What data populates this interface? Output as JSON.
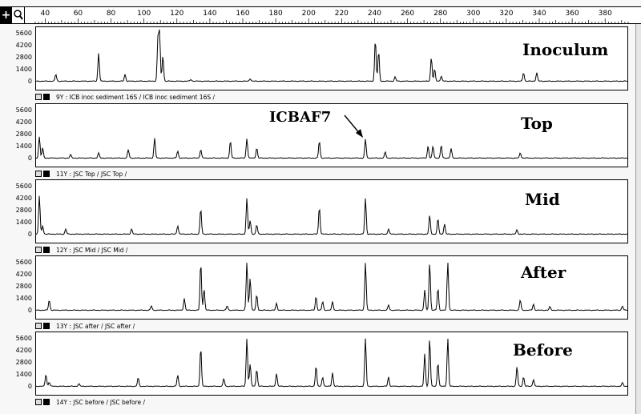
{
  "toolbar": {
    "crosshair_icon": "crosshair-icon",
    "zoom_icon": "magnifier-icon",
    "crosshair_glyph": "+",
    "zoom_glyph": "⚲"
  },
  "ruler": {
    "ticks": [
      "40",
      "60",
      "80",
      "100",
      "120",
      "140",
      "160",
      "180",
      "200",
      "220",
      "240",
      "260",
      "280",
      "300",
      "320",
      "340",
      "360",
      "380"
    ],
    "values": [
      40,
      60,
      80,
      100,
      120,
      140,
      160,
      180,
      200,
      220,
      240,
      260,
      280,
      300,
      320,
      340,
      360,
      380
    ],
    "range": [
      34,
      394
    ]
  },
  "y_ticks": [
    "5600",
    "4200",
    "2800",
    "1400",
    "0"
  ],
  "annotation": {
    "text": "ICBAF7"
  },
  "panels": [
    {
      "id": "inoculum",
      "label": "Inoculum",
      "caption": "9Y : ICB inoc sediment 16S / ICB inoc sediment 16S /",
      "peaks": [
        [
          46,
          800
        ],
        [
          72,
          3300
        ],
        [
          88,
          800
        ],
        [
          108,
          5000
        ],
        [
          109,
          5500
        ],
        [
          111,
          3000
        ],
        [
          128,
          200
        ],
        [
          164,
          300
        ],
        [
          240,
          4900
        ],
        [
          242,
          3500
        ],
        [
          252,
          500
        ],
        [
          274,
          2800
        ],
        [
          276,
          1400
        ],
        [
          280,
          600
        ],
        [
          330,
          1000
        ],
        [
          338,
          1000
        ]
      ]
    },
    {
      "id": "top",
      "label": "Top",
      "caption": "11Y : JSC Top / JSC Top /",
      "peaks": [
        [
          36,
          2500
        ],
        [
          38,
          1200
        ],
        [
          55,
          400
        ],
        [
          72,
          600
        ],
        [
          90,
          1000
        ],
        [
          106,
          2300
        ],
        [
          120,
          800
        ],
        [
          134,
          1000
        ],
        [
          152,
          2000
        ],
        [
          162,
          2300
        ],
        [
          168,
          1200
        ],
        [
          206,
          2000
        ],
        [
          234,
          2200
        ],
        [
          246,
          700
        ],
        [
          272,
          1400
        ],
        [
          275,
          1400
        ],
        [
          280,
          1500
        ],
        [
          286,
          1100
        ],
        [
          328,
          600
        ]
      ]
    },
    {
      "id": "mid",
      "label": "Mid",
      "caption": "12Y : JSC Mid / JSC Mid /",
      "peaks": [
        [
          36,
          4500
        ],
        [
          38,
          1000
        ],
        [
          52,
          600
        ],
        [
          92,
          600
        ],
        [
          120,
          1000
        ],
        [
          134,
          3000
        ],
        [
          162,
          4200
        ],
        [
          164,
          1600
        ],
        [
          168,
          1100
        ],
        [
          206,
          3200
        ],
        [
          234,
          4200
        ],
        [
          248,
          600
        ],
        [
          273,
          2200
        ],
        [
          278,
          1800
        ],
        [
          282,
          1200
        ],
        [
          326,
          500
        ]
      ]
    },
    {
      "id": "after",
      "label": "After",
      "caption": "13Y : JSC after / JSC after /",
      "peaks": [
        [
          42,
          1200
        ],
        [
          104,
          500
        ],
        [
          124,
          1400
        ],
        [
          134,
          5600
        ],
        [
          136,
          2500
        ],
        [
          150,
          500
        ],
        [
          162,
          5600
        ],
        [
          164,
          3800
        ],
        [
          168,
          1800
        ],
        [
          180,
          800
        ],
        [
          204,
          1600
        ],
        [
          208,
          1000
        ],
        [
          214,
          1000
        ],
        [
          234,
          5600
        ],
        [
          248,
          600
        ],
        [
          270,
          2400
        ],
        [
          273,
          5600
        ],
        [
          278,
          2600
        ],
        [
          284,
          5600
        ],
        [
          328,
          1200
        ],
        [
          336,
          700
        ],
        [
          346,
          400
        ],
        [
          390,
          500
        ]
      ]
    },
    {
      "id": "before",
      "label": "Before",
      "caption": "14Y : JSC before / JSC before /",
      "peaks": [
        [
          40,
          1400
        ],
        [
          42,
          500
        ],
        [
          60,
          300
        ],
        [
          96,
          1000
        ],
        [
          120,
          1300
        ],
        [
          134,
          4600
        ],
        [
          148,
          900
        ],
        [
          162,
          5600
        ],
        [
          164,
          2600
        ],
        [
          168,
          2000
        ],
        [
          180,
          1500
        ],
        [
          204,
          2400
        ],
        [
          208,
          1100
        ],
        [
          214,
          1600
        ],
        [
          234,
          5600
        ],
        [
          248,
          1100
        ],
        [
          270,
          3800
        ],
        [
          273,
          5600
        ],
        [
          278,
          2800
        ],
        [
          284,
          5600
        ],
        [
          326,
          2300
        ],
        [
          330,
          1100
        ],
        [
          336,
          800
        ],
        [
          390,
          400
        ]
      ]
    }
  ]
}
